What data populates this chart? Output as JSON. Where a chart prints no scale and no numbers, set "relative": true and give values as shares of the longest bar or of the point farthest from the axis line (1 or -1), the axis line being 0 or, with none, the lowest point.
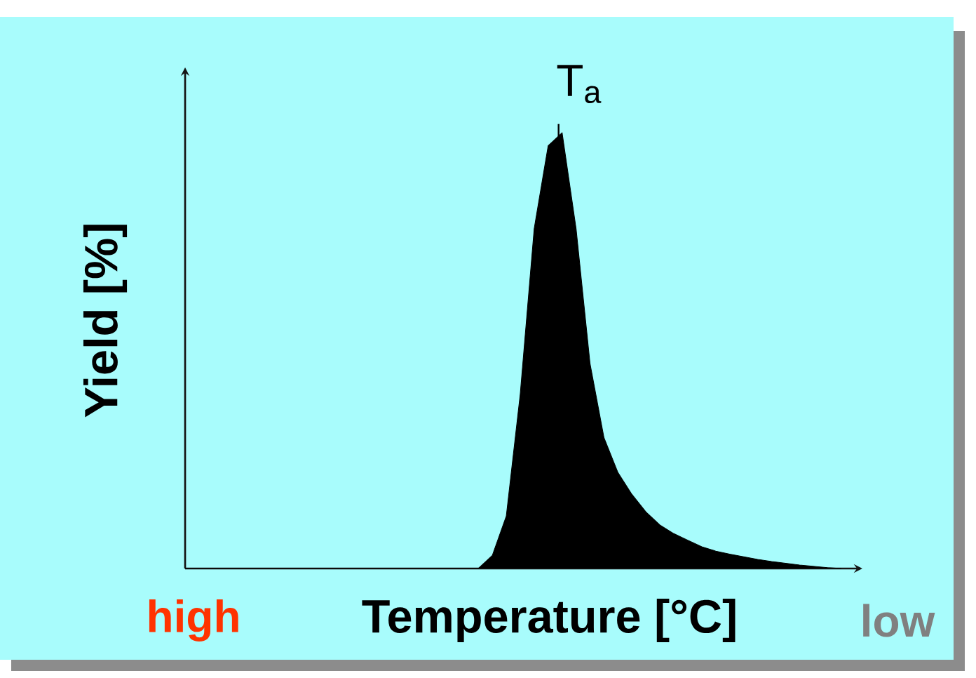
{
  "chart_data": {
    "type": "area",
    "relative": true,
    "xlabel": "Temperature [°C]",
    "ylabel": "Yield [%]",
    "annotations": [
      "high",
      "low",
      "T$_{a}$"
    ],
    "categories": [
      null,
      null,
      null,
      null,
      null,
      null,
      null,
      null,
      null,
      null,
      null,
      null,
      null,
      null,
      null,
      null,
      null,
      null,
      null,
      null,
      null,
      null,
      null,
      null,
      null,
      null,
      null,
      null,
      null,
      null,
      null,
      null,
      null,
      null,
      null,
      null,
      null,
      null,
      null,
      null,
      null,
      null,
      null,
      null,
      null,
      null,
      null,
      null
    ],
    "series": [
      {
        "color": "#000000",
        "values": [
          0,
          0,
          0,
          0,
          0,
          0,
          0,
          0,
          0,
          0,
          0,
          0,
          0,
          0,
          0,
          0,
          0,
          0,
          0,
          0,
          0,
          0,
          0.03,
          0.12,
          0.4,
          0.78,
          0.97,
          1,
          0.78,
          0.47,
          0.3,
          0.22,
          0.17,
          0.13,
          0.1,
          0.08,
          0.065,
          0.05,
          0.04,
          0.033,
          0.027,
          0.021,
          0.016,
          0.012,
          0.008,
          0.005,
          0.002,
          0
        ]
      }
    ]
  }
}
